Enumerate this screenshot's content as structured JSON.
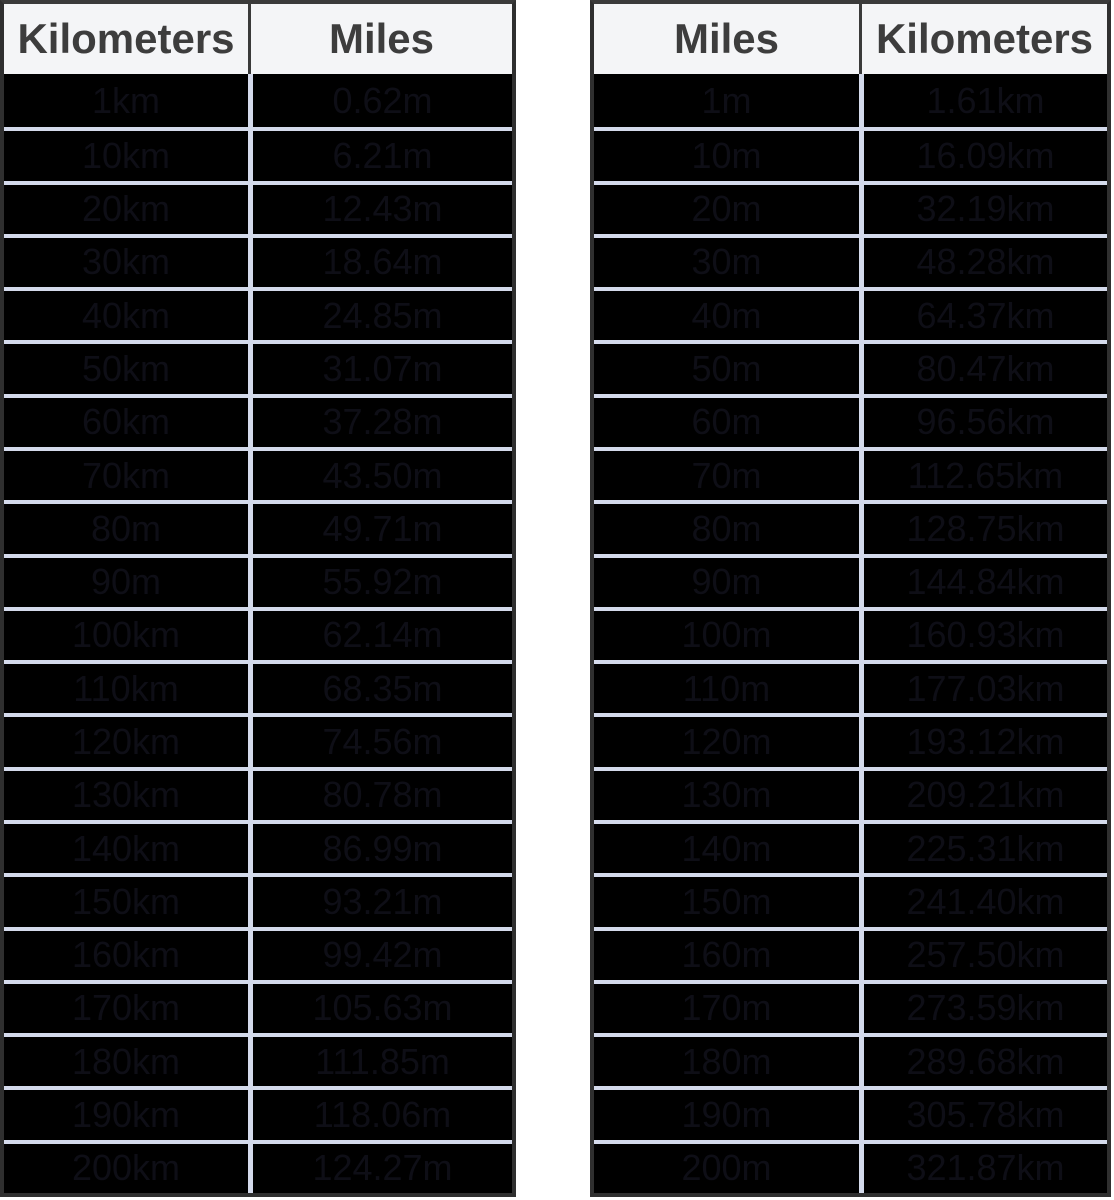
{
  "colors": {
    "header_bg": "#f4f5f7",
    "header_text": "#3d3d3d",
    "header_divider": "#3a3a3a",
    "border": "#2f2f2f",
    "border_top": "#3a3a3a",
    "row_bg": "#000000",
    "row_text": "#0e0e16",
    "separator": "#d4daeb"
  },
  "chart_data": [
    {
      "type": "table",
      "headers": [
        "Kilometers",
        "Miles"
      ],
      "rows": [
        [
          "1km",
          "0.62m"
        ],
        [
          "10km",
          "6.21m"
        ],
        [
          "20km",
          "12.43m"
        ],
        [
          "30km",
          "18.64m"
        ],
        [
          "40km",
          "24.85m"
        ],
        [
          "50km",
          "31.07m"
        ],
        [
          "60km",
          "37.28m"
        ],
        [
          "70km",
          "43.50m"
        ],
        [
          "80m",
          "49.71m"
        ],
        [
          "90m",
          "55.92m"
        ],
        [
          "100km",
          "62.14m"
        ],
        [
          "110km",
          "68.35m"
        ],
        [
          "120km",
          "74.56m"
        ],
        [
          "130km",
          "80.78m"
        ],
        [
          "140km",
          "86.99m"
        ],
        [
          "150km",
          "93.21m"
        ],
        [
          "160km",
          "99.42m"
        ],
        [
          "170km",
          "105.63m"
        ],
        [
          "180km",
          "111.85m"
        ],
        [
          "190km",
          "118.06m"
        ],
        [
          "200km",
          "124.27m"
        ]
      ]
    },
    {
      "type": "table",
      "headers": [
        "Miles",
        "Kilometers"
      ],
      "rows": [
        [
          "1m",
          "1.61km"
        ],
        [
          "10m",
          "16.09km"
        ],
        [
          "20m",
          "32.19km"
        ],
        [
          "30m",
          "48.28km"
        ],
        [
          "40m",
          "64.37km"
        ],
        [
          "50m",
          "80.47km"
        ],
        [
          "60m",
          "96.56km"
        ],
        [
          "70m",
          "112.65km"
        ],
        [
          "80m",
          "128.75km"
        ],
        [
          "90m",
          "144.84km"
        ],
        [
          "100m",
          "160.93km"
        ],
        [
          "110m",
          "177.03km"
        ],
        [
          "120m",
          "193.12km"
        ],
        [
          "130m",
          "209.21km"
        ],
        [
          "140m",
          "225.31km"
        ],
        [
          "150m",
          "241.40km"
        ],
        [
          "160m",
          "257.50km"
        ],
        [
          "170m",
          "273.59km"
        ],
        [
          "180m",
          "289.68km"
        ],
        [
          "190m",
          "305.78km"
        ],
        [
          "200m",
          "321.87km"
        ]
      ]
    }
  ]
}
